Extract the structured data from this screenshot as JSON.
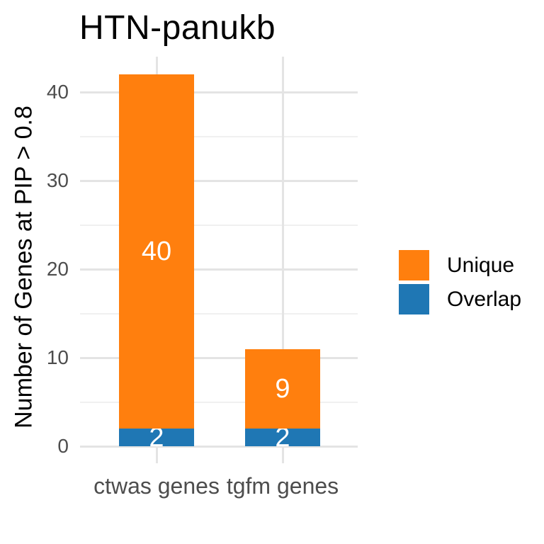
{
  "chart_data": {
    "type": "bar",
    "stacked": true,
    "title": "HTN-panukb",
    "ylabel": "Number of Genes at PIP > 0.8",
    "xlabel": "",
    "categories": [
      "ctwas genes",
      "tgfm genes"
    ],
    "series": [
      {
        "name": "Unique",
        "values": [
          40,
          9
        ],
        "color": "#FF7F0E"
      },
      {
        "name": "Overlap",
        "values": [
          2,
          2
        ],
        "color": "#1F77B4"
      }
    ],
    "stack_order_bottom_to_top": [
      "Overlap",
      "Unique"
    ],
    "bar_value_labels": [
      {
        "category": "ctwas genes",
        "segment": "Unique",
        "label": "40"
      },
      {
        "category": "ctwas genes",
        "segment": "Overlap",
        "label": "2"
      },
      {
        "category": "tgfm genes",
        "segment": "Unique",
        "label": "9"
      },
      {
        "category": "tgfm genes",
        "segment": "Overlap",
        "label": "2"
      }
    ],
    "yticks": [
      0,
      10,
      20,
      30,
      40
    ],
    "yminor": [
      5,
      15,
      25,
      35
    ],
    "ylim": [
      0,
      44
    ],
    "grid": "major+minor",
    "legend_position": "right",
    "background": "#FFFFFF",
    "text_colors": {
      "title": "#000000",
      "axis_title": "#000000",
      "tick_labels": "#4D4D4D",
      "bar_labels": "#FFFFFF"
    }
  }
}
